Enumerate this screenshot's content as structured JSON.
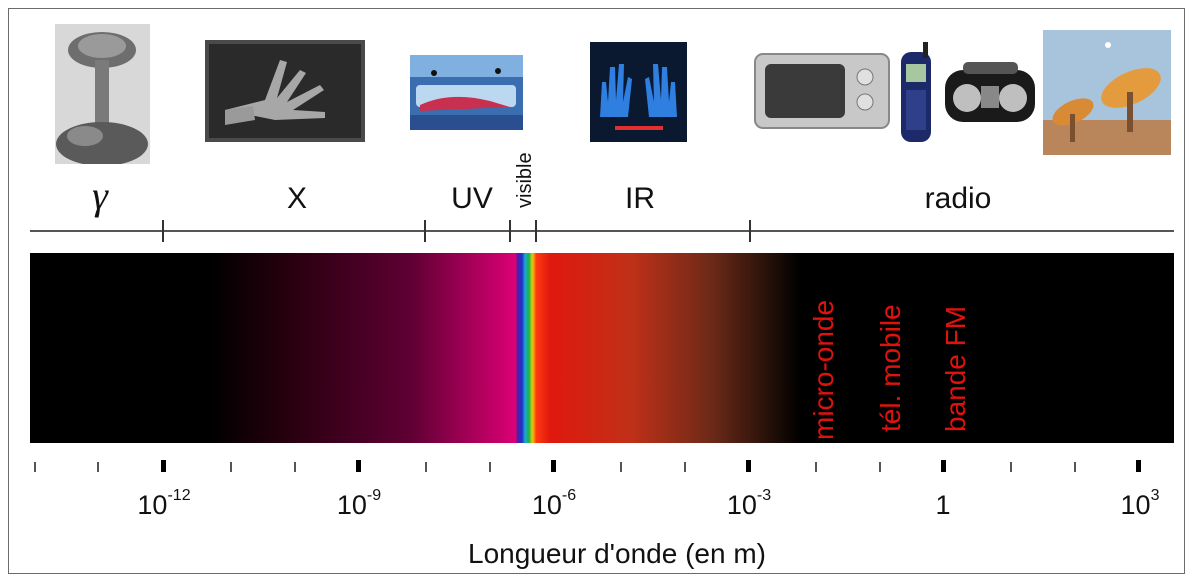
{
  "bands": [
    {
      "label": "γ"
    },
    {
      "label": "X"
    },
    {
      "label": "UV"
    },
    {
      "label": "visible"
    },
    {
      "label": "IR"
    },
    {
      "label": "radio"
    }
  ],
  "spectrum_labels": [
    "micro-onde",
    "tél. mobile",
    "bande FM"
  ],
  "axis": {
    "title": "Longueur d'onde (en m)",
    "ticks": [
      {
        "base": "10",
        "exp": "-12"
      },
      {
        "base": "10",
        "exp": "-9"
      },
      {
        "base": "10",
        "exp": "-6"
      },
      {
        "base": "10",
        "exp": "-3"
      },
      {
        "base": "1",
        "exp": ""
      },
      {
        "base": "10",
        "exp": "3"
      }
    ]
  },
  "colors": {
    "spectrum_label": "#e0120e",
    "uv_magenta": "#de0077",
    "ir_red": "#e0180e"
  }
}
